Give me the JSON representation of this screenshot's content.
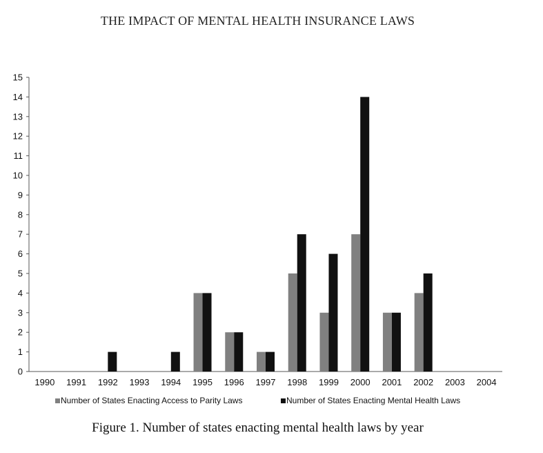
{
  "header": {
    "running_title": "THE IMPACT OF MENTAL HEALTH INSURANCE LAWS"
  },
  "caption": "Figure 1.  Number of states enacting mental health laws by year",
  "chart_data": {
    "type": "bar",
    "categories": [
      "1990",
      "1991",
      "1992",
      "1993",
      "1994",
      "1995",
      "1996",
      "1997",
      "1998",
      "1999",
      "2000",
      "2001",
      "2002",
      "2003",
      "2004"
    ],
    "series": [
      {
        "name": "Number of States Enacting Access to Parity Laws",
        "color": "#808080",
        "values": [
          0,
          0,
          0,
          0,
          0,
          4,
          2,
          1,
          5,
          3,
          7,
          3,
          4,
          0,
          0
        ]
      },
      {
        "name": "Number of States Enacting Mental Health Laws",
        "color": "#111111",
        "values": [
          0,
          0,
          1,
          0,
          1,
          4,
          2,
          1,
          7,
          6,
          14,
          3,
          5,
          0,
          0
        ]
      }
    ],
    "title": "",
    "xlabel": "",
    "ylabel": "",
    "ylim": [
      0,
      15
    ],
    "yticks": [
      0,
      1,
      2,
      3,
      4,
      5,
      6,
      7,
      8,
      9,
      10,
      11,
      12,
      13,
      14,
      15
    ],
    "grid": false,
    "legend_position": "bottom"
  }
}
